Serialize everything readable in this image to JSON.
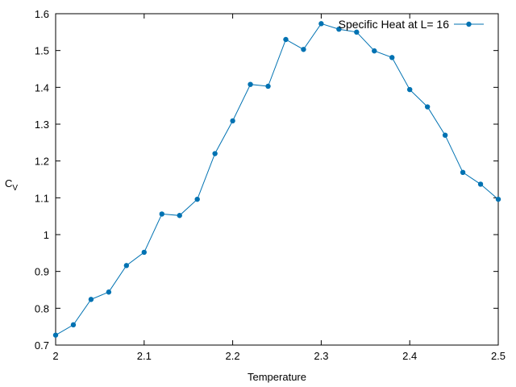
{
  "chart_data": {
    "type": "line",
    "title": "",
    "xlabel": "Temperature",
    "ylabel_main": "C",
    "ylabel_sub": "V",
    "xlim": [
      2.0,
      2.5
    ],
    "ylim": [
      0.7,
      1.6
    ],
    "xticks": [
      2.0,
      2.1,
      2.2,
      2.3,
      2.4,
      2.5
    ],
    "xtick_labels": [
      "2",
      "2.1",
      "2.2",
      "2.3",
      "2.4",
      "2.5"
    ],
    "yticks": [
      0.7,
      0.8,
      0.9,
      1.0,
      1.1,
      1.2,
      1.3,
      1.4,
      1.5,
      1.6
    ],
    "ytick_labels": [
      "0.7",
      "0.8",
      "0.9",
      "1",
      "1.1",
      "1.2",
      "1.3",
      "1.4",
      "1.5",
      "1.6"
    ],
    "grid": false,
    "legend_position": "top-right",
    "series": [
      {
        "name": "Specific Heat at L= 16",
        "color": "#0072b2",
        "x": [
          2.0,
          2.02,
          2.04,
          2.06,
          2.08,
          2.1,
          2.12,
          2.14,
          2.16,
          2.18,
          2.2,
          2.22,
          2.24,
          2.26,
          2.28,
          2.3,
          2.32,
          2.34,
          2.36,
          2.38,
          2.4,
          2.42,
          2.44,
          2.46,
          2.48,
          2.5
        ],
        "y": [
          0.727,
          0.755,
          0.824,
          0.844,
          0.916,
          0.952,
          1.056,
          1.052,
          1.096,
          1.22,
          1.309,
          1.408,
          1.403,
          1.53,
          1.503,
          1.573,
          1.558,
          1.55,
          1.499,
          1.481,
          1.394,
          1.347,
          1.27,
          1.169,
          1.137,
          1.096
        ]
      }
    ]
  }
}
